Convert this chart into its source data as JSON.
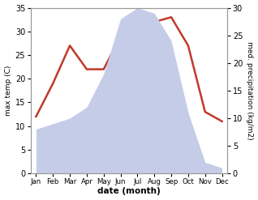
{
  "months": [
    "Jan",
    "Feb",
    "Mar",
    "Apr",
    "May",
    "Jun",
    "Jul",
    "Aug",
    "Sep",
    "Oct",
    "Nov",
    "Dec"
  ],
  "max_temp": [
    12,
    19,
    27,
    22,
    22,
    29,
    34,
    32,
    33,
    27,
    13,
    11
  ],
  "precipitation": [
    8,
    9,
    10,
    12,
    18,
    28,
    30,
    29,
    24,
    11,
    2,
    1
  ],
  "temp_color": "#c0392b",
  "precip_fill_color": "#c5cce8",
  "temp_ylim": [
    0,
    35
  ],
  "precip_ylim": [
    0,
    30
  ],
  "temp_yticks": [
    0,
    5,
    10,
    15,
    20,
    25,
    30,
    35
  ],
  "precip_yticks": [
    0,
    5,
    10,
    15,
    20,
    25,
    30
  ],
  "ylabel_left": "max temp (C)",
  "ylabel_right": "med. precipitation (kg/m2)",
  "xlabel": "date (month)",
  "background_color": "#ffffff",
  "spine_color": "#999999",
  "temp_linewidth": 1.8
}
